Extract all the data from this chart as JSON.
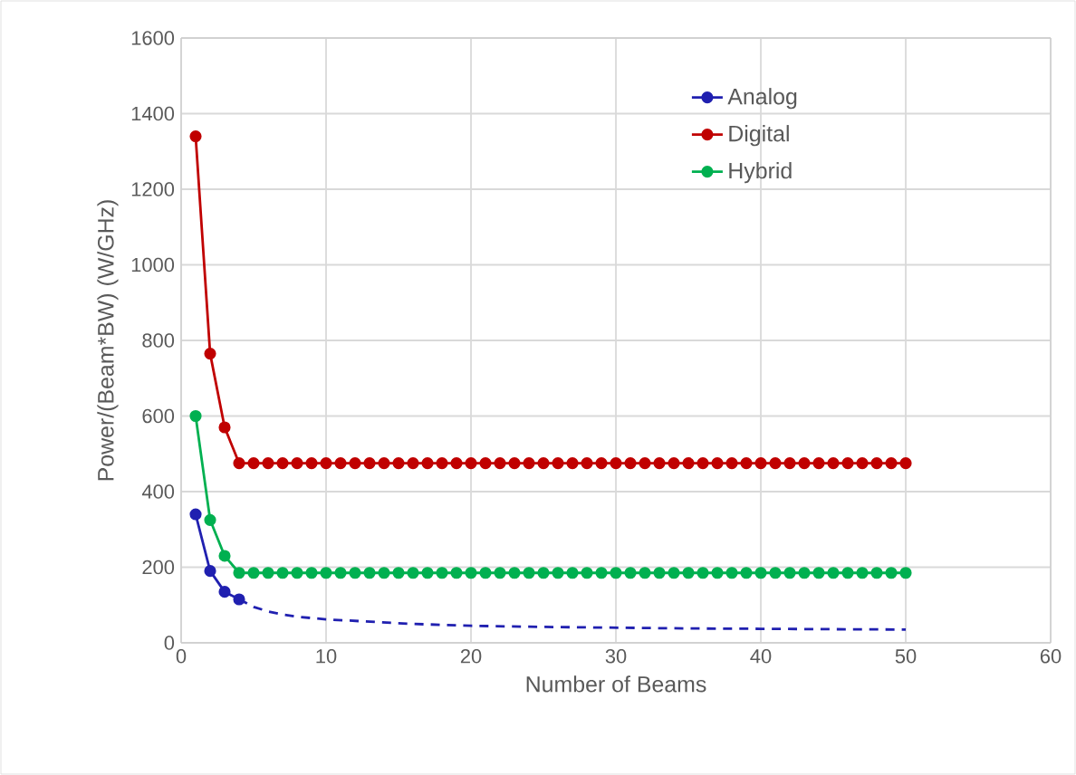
{
  "chart_data": {
    "type": "line",
    "xlabel": "Number of Beams",
    "ylabel": "Power/(Beam*BW) (W/GHz)",
    "x": [
      1,
      2,
      3,
      4,
      5,
      6,
      7,
      8,
      9,
      10,
      11,
      12,
      13,
      14,
      15,
      16,
      17,
      18,
      19,
      20,
      21,
      22,
      23,
      24,
      25,
      26,
      27,
      28,
      29,
      30,
      31,
      32,
      33,
      34,
      35,
      36,
      37,
      38,
      39,
      40,
      41,
      42,
      43,
      44,
      45,
      46,
      47,
      48,
      49,
      50
    ],
    "series": [
      {
        "name": "Analog",
        "color": "#2020b0",
        "x": [
          1,
          2,
          3,
          4
        ],
        "values": [
          340,
          190,
          135,
          115
        ]
      },
      {
        "name": "Digital",
        "color": "#c00000",
        "values": [
          1340,
          765,
          570,
          475,
          475,
          475,
          475,
          475,
          475,
          475,
          475,
          475,
          475,
          475,
          475,
          475,
          475,
          475,
          475,
          475,
          475,
          475,
          475,
          475,
          475,
          475,
          475,
          475,
          475,
          475,
          475,
          475,
          475,
          475,
          475,
          475,
          475,
          475,
          475,
          475,
          475,
          475,
          475,
          475,
          475,
          475,
          475,
          475,
          475,
          475
        ]
      },
      {
        "name": "Hybrid",
        "color": "#00b050",
        "values": [
          600,
          325,
          230,
          185,
          185,
          185,
          185,
          185,
          185,
          185,
          185,
          185,
          185,
          185,
          185,
          185,
          185,
          185,
          185,
          185,
          185,
          185,
          185,
          185,
          185,
          185,
          185,
          185,
          185,
          185,
          185,
          185,
          185,
          185,
          185,
          185,
          185,
          185,
          185,
          185,
          185,
          185,
          185,
          185,
          185,
          185,
          185,
          185,
          185,
          185
        ]
      },
      {
        "color": "#2020b0",
        "x": [
          4,
          5,
          6,
          7,
          8,
          10,
          13,
          16,
          20,
          25,
          30,
          35,
          40,
          45,
          50
        ],
        "values": [
          115,
          95,
          83,
          75,
          69,
          62,
          56,
          50,
          45,
          42,
          40,
          38,
          37,
          36,
          35
        ],
        "marker": "none",
        "line_style": "dashed"
      }
    ],
    "xlim": [
      0,
      60
    ],
    "xticks": [
      0,
      10,
      20,
      30,
      40,
      50,
      60
    ],
    "ylim": [
      0,
      1600
    ],
    "yticks": [
      0,
      200,
      400,
      600,
      800,
      1000,
      1200,
      1400,
      1600
    ],
    "grid": true,
    "legend": "top right",
    "marker": "circle",
    "line_style": "solid"
  }
}
